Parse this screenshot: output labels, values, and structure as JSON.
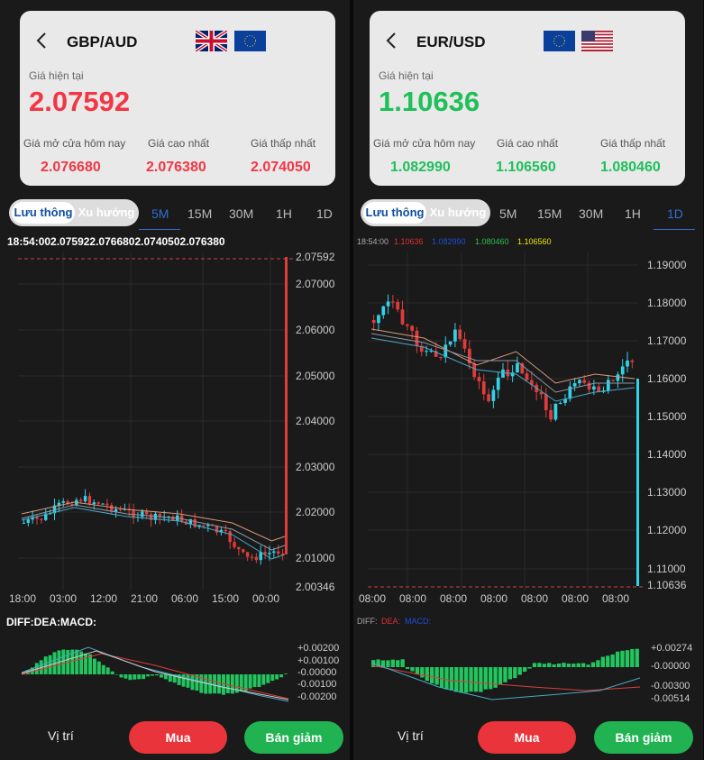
{
  "left": {
    "pair": "GBP/AUD",
    "flags": [
      "uk-flag-icon",
      "eu-flag-icon"
    ],
    "current_label": "Giá hiện tại",
    "current_price": "2.07592",
    "price_color": "#f23645",
    "stats": {
      "open_label": "Giá mở cửa hôm nay",
      "open": "2.076680",
      "high_label": "Giá cao nhất",
      "high": "2.076380",
      "low_label": "Giá thấp nhất",
      "low": "2.074050"
    },
    "toggle": {
      "on": "Lưu thông",
      "off": "Xu hướng"
    },
    "timeframes": [
      "5M",
      "15M",
      "30M",
      "1H",
      "1D"
    ],
    "active_timeframe": "5M",
    "info_line": "18:54:002.075922.0766802.0740502.076380",
    "y_ticks": [
      "2.07592",
      "2.07000",
      "2.06000",
      "2.05000",
      "2.04000",
      "2.03000",
      "2.02000",
      "2.01000",
      "2.00346"
    ],
    "x_ticks": [
      "18:00",
      "03:00",
      "12:00",
      "21:00",
      "06:00",
      "15:00",
      "00:00"
    ],
    "macd_label": "DIFF:DEA:MACD:",
    "macd_ticks": [
      "+0.00200",
      "+0.00100",
      "-0.00000",
      "-0.00100",
      "-0.00200"
    ],
    "pos_label": "Vị trí",
    "buy": "Mua",
    "sell": "Bán giảm"
  },
  "right": {
    "pair": "EUR/USD",
    "flags": [
      "eu-flag-icon",
      "us-flag-icon"
    ],
    "current_label": "Giá hiện tại",
    "current_price": "1.10636",
    "price_color": "#1fbf5a",
    "stats": {
      "open_label": "Giá mở cửa hôm nay",
      "open": "1.082990",
      "high_label": "Giá cao nhất",
      "high": "1.106560",
      "low_label": "Giá thấp nhất",
      "low": "1.080460"
    },
    "toggle": {
      "on": "Lưu thông",
      "off": "Xu hướng"
    },
    "timeframes": [
      "5M",
      "15M",
      "30M",
      "1H",
      "1D"
    ],
    "active_timeframe": "1D",
    "info_time": "18:54:00",
    "info_values": [
      {
        "text": "1.10636",
        "color": "#e03030"
      },
      {
        "text": "1.082990",
        "color": "#1a4fd8"
      },
      {
        "text": "1.080460",
        "color": "#27c24c"
      },
      {
        "text": "1.106560",
        "color": "#f2e600"
      }
    ],
    "y_ticks": [
      "1.19000",
      "1.18000",
      "1.17000",
      "1.16000",
      "1.15000",
      "1.14000",
      "1.13000",
      "1.12000",
      "1.11000",
      "1.10636"
    ],
    "x_ticks": [
      "08:00",
      "08:00",
      "08:00",
      "08:00",
      "08:00",
      "08:00",
      "08:00"
    ],
    "macd_diff": "DIFF:",
    "macd_dea": "DEA:",
    "macd_macd": "MACD:",
    "macd_ticks": [
      "+0.00274",
      "-0.00000",
      "-0.00300",
      "-0.00514"
    ],
    "pos_label": "Vị trí",
    "buy": "Mua",
    "sell": "Bán giảm"
  },
  "colors": {
    "up": "#2fd4e8",
    "down": "#e03c3c",
    "buy": "#e8343a",
    "sell": "#21b352"
  }
}
